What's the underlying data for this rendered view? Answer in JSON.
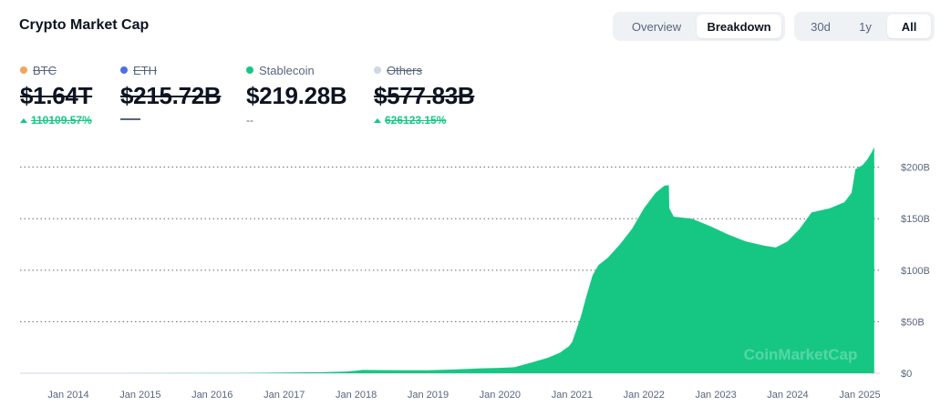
{
  "header": {
    "title": "Crypto Market Cap"
  },
  "view_toggle": {
    "items": [
      "Overview",
      "Breakdown"
    ],
    "active": "Breakdown"
  },
  "range_toggle": {
    "items": [
      "30d",
      "1y",
      "All"
    ],
    "active": "All"
  },
  "legend": [
    {
      "name": "BTC",
      "value": "$1.64T",
      "change": "110109.57%",
      "color": "#f7a35c",
      "disabled": true,
      "trend": "up"
    },
    {
      "name": "ETH",
      "value": "$215.72B",
      "change": "",
      "color": "#4c6fe5",
      "disabled": true,
      "trend": "none"
    },
    {
      "name": "Stablecoin",
      "value": "$219.28B",
      "change": "--",
      "color": "#16c784",
      "disabled": false,
      "trend": "none"
    },
    {
      "name": "Others",
      "value": "$577.83B",
      "change": "626123.15%",
      "color": "#cfd6e4",
      "disabled": true,
      "trend": "up"
    }
  ],
  "chart_data": {
    "type": "area",
    "series": [
      {
        "name": "Stablecoin",
        "color": "#16c784",
        "points": [
          [
            "2013-04-28",
            0.0
          ],
          [
            "2014-06-01",
            0.0
          ],
          [
            "2015-06-01",
            0.1
          ],
          [
            "2016-06-01",
            0.3
          ],
          [
            "2017-01-01",
            0.6
          ],
          [
            "2017-07-01",
            1.0
          ],
          [
            "2017-11-01",
            1.5
          ],
          [
            "2018-01-01",
            2.4
          ],
          [
            "2018-02-01",
            3.2
          ],
          [
            "2018-06-01",
            3.0
          ],
          [
            "2018-10-01",
            2.9
          ],
          [
            "2019-01-01",
            2.8
          ],
          [
            "2019-06-01",
            3.8
          ],
          [
            "2019-10-01",
            4.8
          ],
          [
            "2020-01-01",
            5.2
          ],
          [
            "2020-03-15",
            5.8
          ],
          [
            "2020-06-01",
            10.0
          ],
          [
            "2020-09-01",
            15.0
          ],
          [
            "2020-11-01",
            20.0
          ],
          [
            "2020-12-15",
            26.0
          ],
          [
            "2021-01-01",
            30.0
          ],
          [
            "2021-02-15",
            55.0
          ],
          [
            "2021-03-15",
            75.0
          ],
          [
            "2021-04-15",
            95.0
          ],
          [
            "2021-05-15",
            105.0
          ],
          [
            "2021-07-01",
            112.0
          ],
          [
            "2021-09-01",
            125.0
          ],
          [
            "2021-11-01",
            140.0
          ],
          [
            "2022-01-01",
            160.0
          ],
          [
            "2022-03-01",
            175.0
          ],
          [
            "2022-04-15",
            182.0
          ],
          [
            "2022-05-07",
            182.5
          ],
          [
            "2022-05-10",
            160.0
          ],
          [
            "2022-06-01",
            152.0
          ],
          [
            "2022-09-01",
            150.0
          ],
          [
            "2022-12-01",
            143.0
          ],
          [
            "2023-03-01",
            135.0
          ],
          [
            "2023-06-01",
            128.0
          ],
          [
            "2023-09-01",
            124.0
          ],
          [
            "2023-11-01",
            122.0
          ],
          [
            "2024-01-01",
            128.0
          ],
          [
            "2024-03-01",
            140.0
          ],
          [
            "2024-05-01",
            156.0
          ],
          [
            "2024-08-01",
            160.0
          ],
          [
            "2024-10-15",
            166.0
          ],
          [
            "2024-11-20",
            175.0
          ],
          [
            "2024-12-10",
            198.0
          ],
          [
            "2025-01-15",
            202.0
          ],
          [
            "2025-02-10",
            208.0
          ],
          [
            "2025-03-01",
            214.0
          ],
          [
            "2025-03-15",
            219.28
          ]
        ]
      }
    ],
    "x_ticks": [
      "Jan 2014",
      "Jan 2015",
      "Jan 2016",
      "Jan 2017",
      "Jan 2018",
      "Jan 2019",
      "Jan 2020",
      "Jan 2021",
      "Jan 2022",
      "Jan 2023",
      "Jan 2024",
      "Jan 2025"
    ],
    "y_ticks": [
      "$0",
      "$50B",
      "$100B",
      "$150B",
      "$200B"
    ],
    "ylim": [
      0,
      220
    ],
    "grid": true,
    "watermark": "CoinMarketCap"
  }
}
